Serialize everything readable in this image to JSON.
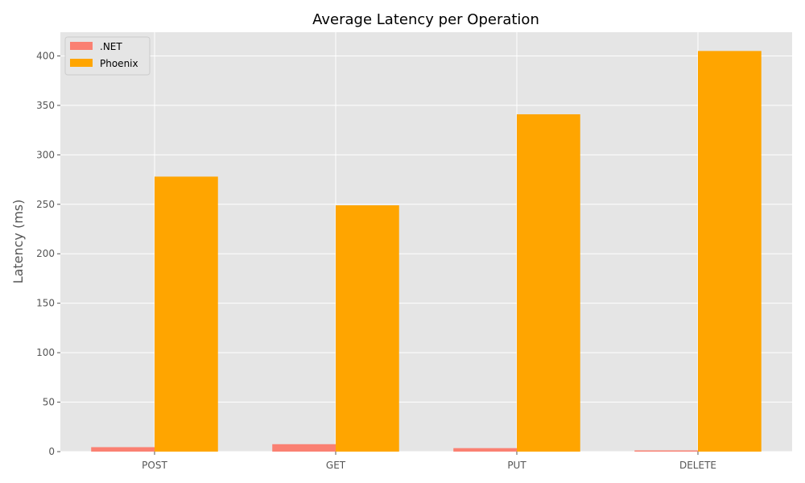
{
  "chart_data": {
    "type": "bar",
    "title": "Average Latency per Operation",
    "xlabel": "",
    "ylabel": "Latency (ms)",
    "categories": [
      "POST",
      "GET",
      "PUT",
      "DELETE"
    ],
    "series": [
      {
        "name": ".NET",
        "values": [
          4.5,
          7.5,
          3.5,
          1.2
        ],
        "color": "#fa8072"
      },
      {
        "name": "Phoenix",
        "values": [
          278,
          249,
          341,
          405
        ],
        "color": "#ffa500"
      }
    ],
    "ylim": [
      0,
      424
    ],
    "yticks": [
      0,
      50,
      100,
      150,
      200,
      250,
      300,
      350,
      400
    ],
    "grid": true,
    "legend_position": "top-left",
    "colors": {
      "plot_background": "#e5e5e5",
      "grid": "#ffffff",
      "tick_text": "#555555"
    }
  }
}
